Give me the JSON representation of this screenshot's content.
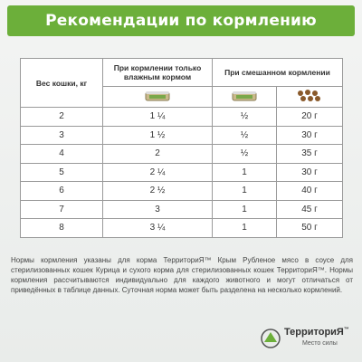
{
  "header": {
    "title": "Рекомендации по кормлению"
  },
  "table": {
    "headers": [
      "Вес кошки, кг",
      "При кормлении только влажным кормом",
      "При смешанном кормлении"
    ],
    "rows": [
      [
        "2",
        "1 ¼",
        "½",
        "20 г"
      ],
      [
        "3",
        "1 ½",
        "½",
        "30 г"
      ],
      [
        "4",
        "2",
        "½",
        "35 г"
      ],
      [
        "5",
        "2 ¼",
        "1",
        "30 г"
      ],
      [
        "6",
        "2 ½",
        "1",
        "40 г"
      ],
      [
        "7",
        "3",
        "1",
        "45 г"
      ],
      [
        "8",
        "3 ¼",
        "1",
        "50 г"
      ]
    ]
  },
  "note": "Нормы кормления указаны для корма ТерриториЯ™ Крым Рубленое мясо в соусе для стерилизованных кошек Курица и сухого корма для стерилизованных кошек ТерриториЯ™. Нормы кормления рассчитываются индивидуально для каждого животного и могут отличаться от приведённых в таблице данных. Суточная норма может быть разделена на несколько кормлений.",
  "brand": {
    "name": "ТерриториЯ",
    "tm": "™",
    "tagline": "Место силы"
  }
}
